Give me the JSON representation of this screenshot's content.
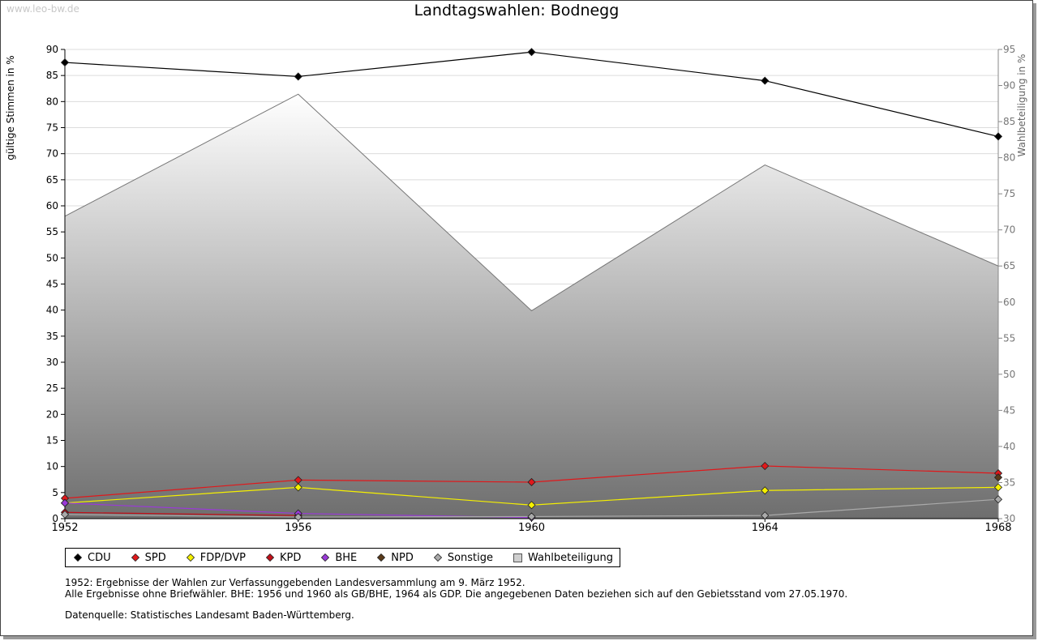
{
  "watermark": "www.leo-bw.de",
  "chart_data": {
    "type": "line",
    "title": "Landtagswahlen: Bodnegg",
    "ylabel": "gültige Stimmen in %",
    "y2label": "Wahlbeteiligung in %",
    "x": [
      "1952",
      "1956",
      "1960",
      "1964",
      "1968"
    ],
    "ylim": [
      0,
      90
    ],
    "y2lim": [
      30,
      95
    ],
    "yticks": [
      0,
      5,
      10,
      15,
      20,
      25,
      30,
      35,
      40,
      45,
      50,
      55,
      60,
      65,
      70,
      75,
      80,
      85,
      90
    ],
    "y2ticks": [
      30,
      35,
      40,
      45,
      50,
      55,
      60,
      65,
      70,
      75,
      80,
      85,
      90,
      95
    ],
    "grid": true,
    "series": [
      {
        "name": "CDU",
        "color": "#000000",
        "values": [
          87.5,
          84.8,
          89.5,
          84.0,
          73.3
        ]
      },
      {
        "name": "SPD",
        "color": "#e0181b",
        "values": [
          3.9,
          7.4,
          7.0,
          10.1,
          8.7
        ]
      },
      {
        "name": "FDP/DVP",
        "color": "#f5f000",
        "values": [
          3.0,
          6.0,
          2.6,
          5.4,
          6.0
        ]
      },
      {
        "name": "KPD",
        "color": "#c0101a",
        "values": [
          1.2,
          0.6,
          null,
          null,
          null
        ]
      },
      {
        "name": "BHE",
        "color": "#9a3ad8",
        "values": [
          3.0,
          1.0,
          0.2,
          null,
          null
        ]
      },
      {
        "name": "NPD",
        "color": "#5a3a1a",
        "values": [
          null,
          null,
          null,
          null,
          7.9
        ]
      },
      {
        "name": "Sonstige",
        "color": "#aaaaaa",
        "values": [
          0.8,
          0.3,
          0.4,
          0.6,
          3.7
        ]
      }
    ],
    "turnout": {
      "name": "Wahlbeteiligung",
      "color": "#cccccc",
      "values": [
        71.9,
        88.8,
        58.8,
        79.0,
        65.0
      ]
    }
  },
  "notes": {
    "line1": "1952: Ergebnisse der Wahlen zur Verfassunggebenden Landesversammlung am 9. März 1952.",
    "line2": "Alle Ergebnisse ohne Briefwähler. BHE: 1956 und 1960 als GB/BHE, 1964 als GDP. Die angegebenen Daten beziehen sich auf den Gebietsstand vom 27.05.1970.",
    "source": "Datenquelle: Statistisches Landesamt Baden-Württemberg."
  }
}
